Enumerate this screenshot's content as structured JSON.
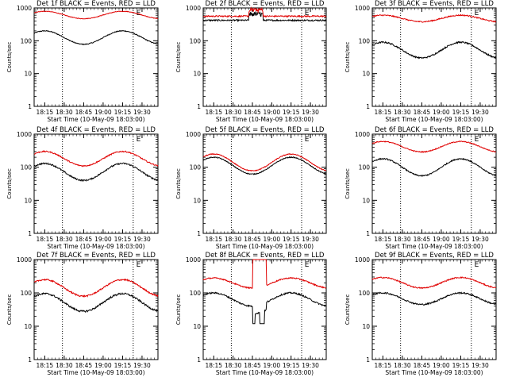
{
  "colors": {
    "events": "#000000",
    "lld": "#e00000",
    "axes": "#000000",
    "background": "#ffffff"
  },
  "chart_data": [
    {
      "type": "line",
      "panel": 1,
      "title": "Det 1f BLACK = Events, RED = LLD",
      "xlabel": "Start Time (10-May-09 18:03:00)",
      "ylabel": "Counts/sec",
      "xticks": [
        "18:15",
        "18:30",
        "18:45",
        "19:00",
        "19:15",
        "19:30"
      ],
      "yticks": [
        "1",
        "10",
        "100",
        "1000"
      ],
      "ylim": [
        1,
        1000
      ],
      "yscale": "log",
      "xlim_min": [
        9,
        44
      ],
      "annotation": "E",
      "vlines_min": [
        17,
        37
      ],
      "series": [
        {
          "name": "Events",
          "color": "black",
          "base": 200,
          "lo": 78,
          "hi": 200,
          "noise": 0.03
        },
        {
          "name": "LLD",
          "color": "red",
          "base": 780,
          "lo": 470,
          "hi": 790,
          "noise": 0.02
        }
      ]
    },
    {
      "type": "line",
      "panel": 2,
      "title": "Det 2f BLACK = Events, RED = LLD",
      "xlabel": "Start Time (10-May-09 18:03:00)",
      "ylabel": "Counts/sec",
      "xticks": [
        "18:15",
        "18:30",
        "18:45",
        "19:00",
        "19:15",
        "19:30"
      ],
      "yticks": [
        "1",
        "10",
        "100",
        "1000"
      ],
      "ylim": [
        1,
        1000
      ],
      "yscale": "log",
      "xlim_min": [
        9,
        44
      ],
      "annotation": "E",
      "vlines_min": [
        17,
        37
      ],
      "series": [
        {
          "name": "Events",
          "color": "black",
          "flat": 420,
          "noise": 0.05,
          "spike_range": [
            22,
            26
          ]
        },
        {
          "name": "LLD",
          "color": "red",
          "flat": 560,
          "noise": 0.05,
          "spike_range": [
            22,
            26
          ]
        }
      ]
    },
    {
      "type": "line",
      "panel": 3,
      "title": "Det 3f BLACK = Events, RED = LLD",
      "xlabel": "Start Time (10-May-09 18:03:00)",
      "ylabel": "Counts/sec",
      "xticks": [
        "18:15",
        "18:30",
        "18:45",
        "19:00",
        "19:15",
        "19:30"
      ],
      "yticks": [
        "1",
        "10",
        "100",
        "1000"
      ],
      "ylim": [
        1,
        1000
      ],
      "yscale": "log",
      "xlim_min": [
        9,
        44
      ],
      "annotation": "E",
      "vlines_min": [
        17,
        37
      ],
      "series": [
        {
          "name": "Events",
          "color": "black",
          "base": 90,
          "lo": 30,
          "hi": 90,
          "noise": 0.05
        },
        {
          "name": "LLD",
          "color": "red",
          "base": 600,
          "lo": 380,
          "hi": 600,
          "noise": 0.04
        }
      ]
    },
    {
      "type": "line",
      "panel": 4,
      "title": "Det 4f BLACK = Events, RED = LLD",
      "xlabel": "Start Time (10-May-09 18:03:00)",
      "ylabel": "Counts/sec",
      "xticks": [
        "18:15",
        "18:30",
        "18:45",
        "19:00",
        "19:15",
        "19:30"
      ],
      "yticks": [
        "1",
        "10",
        "100",
        "1000"
      ],
      "ylim": [
        1,
        1000
      ],
      "yscale": "log",
      "xlim_min": [
        9,
        44
      ],
      "annotation": "E",
      "vlines_min": [
        17,
        37
      ],
      "series": [
        {
          "name": "Events",
          "color": "black",
          "base": 130,
          "lo": 40,
          "hi": 130,
          "noise": 0.05
        },
        {
          "name": "LLD",
          "color": "red",
          "base": 300,
          "lo": 110,
          "hi": 300,
          "noise": 0.04
        }
      ]
    },
    {
      "type": "line",
      "panel": 5,
      "title": "Det 5f BLACK = Events, RED = LLD",
      "xlabel": "Start Time (10-May-09 18:03:00)",
      "ylabel": "Counts/sec",
      "xticks": [
        "18:15",
        "18:30",
        "18:45",
        "19:00",
        "19:15",
        "19:30"
      ],
      "yticks": [
        "1",
        "10",
        "100",
        "1000"
      ],
      "ylim": [
        1,
        1000
      ],
      "yscale": "log",
      "xlim_min": [
        9,
        44
      ],
      "annotation": "E",
      "vlines_min": [
        17,
        37
      ],
      "series": [
        {
          "name": "Events",
          "color": "black",
          "base": 200,
          "lo": 62,
          "hi": 200,
          "noise": 0.03
        },
        {
          "name": "LLD",
          "color": "red",
          "base": 250,
          "lo": 78,
          "hi": 250,
          "noise": 0.03
        }
      ]
    },
    {
      "type": "line",
      "panel": 6,
      "title": "Det 6f BLACK = Events, RED = LLD",
      "xlabel": "Start Time (10-May-09 18:03:00)",
      "ylabel": "Counts/sec",
      "xticks": [
        "18:15",
        "18:30",
        "18:45",
        "19:00",
        "19:15",
        "19:30"
      ],
      "yticks": [
        "1",
        "10",
        "100",
        "1000"
      ],
      "ylim": [
        1,
        1000
      ],
      "yscale": "log",
      "xlim_min": [
        9,
        44
      ],
      "annotation": "E",
      "vlines_min": [
        17,
        37
      ],
      "series": [
        {
          "name": "Events",
          "color": "black",
          "base": 180,
          "lo": 55,
          "hi": 180,
          "noise": 0.04
        },
        {
          "name": "LLD",
          "color": "red",
          "base": 600,
          "lo": 290,
          "hi": 600,
          "noise": 0.03
        }
      ]
    },
    {
      "type": "line",
      "panel": 7,
      "title": "Det 7f BLACK = Events, RED = LLD",
      "xlabel": "Start Time (10-May-09 18:03:00)",
      "ylabel": "Counts/sec",
      "xticks": [
        "18:15",
        "18:30",
        "18:45",
        "19:00",
        "19:15",
        "19:30"
      ],
      "yticks": [
        "1",
        "10",
        "100",
        "1000"
      ],
      "ylim": [
        1,
        1000
      ],
      "yscale": "log",
      "xlim_min": [
        9,
        44
      ],
      "annotation": "E",
      "vlines_min": [
        17,
        37
      ],
      "series": [
        {
          "name": "Events",
          "color": "black",
          "base": 95,
          "lo": 28,
          "hi": 95,
          "noise": 0.06
        },
        {
          "name": "LLD",
          "color": "red",
          "base": 250,
          "lo": 80,
          "hi": 250,
          "noise": 0.05
        }
      ]
    },
    {
      "type": "line",
      "panel": 8,
      "title": "Det 8f BLACK = Events, RED = LLD",
      "xlabel": "Start Time (10-May-09 18:03:00)",
      "ylabel": "Counts/sec",
      "xticks": [
        "18:15",
        "18:30",
        "18:45",
        "19:00",
        "19:15",
        "19:30"
      ],
      "yticks": [
        "1",
        "10",
        "100",
        "1000"
      ],
      "ylim": [
        1,
        1000
      ],
      "yscale": "log",
      "xlim_min": [
        9,
        44
      ],
      "annotation": "E",
      "vlines_min": [
        17,
        37
      ],
      "series": [
        {
          "name": "Events",
          "color": "black",
          "base": 100,
          "lo": 40,
          "hi": 100,
          "noise": 0.05,
          "gap_min": [
            23,
            27
          ],
          "dropout_to": 12
        },
        {
          "name": "LLD",
          "color": "red",
          "base": 280,
          "lo": 140,
          "hi": 280,
          "noise": 0.04,
          "gap_min": [
            23,
            27
          ],
          "spike_to": 1000
        }
      ]
    },
    {
      "type": "line",
      "panel": 9,
      "title": "Det 9f BLACK = Events, RED = LLD",
      "xlabel": "Start Time (10-May-09 18:03:00)",
      "ylabel": "Counts/sec",
      "xticks": [
        "18:15",
        "18:30",
        "18:45",
        "19:00",
        "19:15",
        "19:30"
      ],
      "yticks": [
        "1",
        "10",
        "100",
        "1000"
      ],
      "ylim": [
        1,
        1000
      ],
      "yscale": "log",
      "xlim_min": [
        9,
        44
      ],
      "annotation": "E",
      "vlines_min": [
        17,
        37
      ],
      "series": [
        {
          "name": "Events",
          "color": "black",
          "base": 100,
          "lo": 45,
          "hi": 100,
          "noise": 0.05
        },
        {
          "name": "LLD",
          "color": "red",
          "base": 290,
          "lo": 140,
          "hi": 290,
          "noise": 0.04
        }
      ]
    }
  ]
}
